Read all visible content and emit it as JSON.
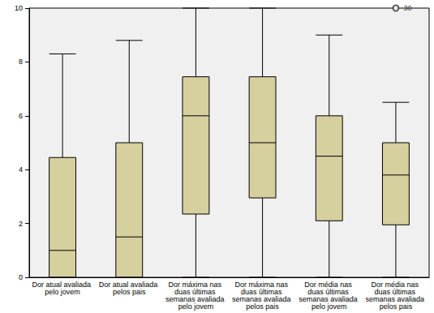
{
  "chart_data": {
    "type": "boxplot",
    "categories": [
      "Dor atual avaliada pelo jovem",
      "Dor atual avaliada pelos pais",
      "Dor máxima nas duas últimas semanas avaliada pelo jovem",
      "Dor máxima nas duas últimas semanas avaliada pelos pais",
      "Dor média nas duas últimas semanas avaliada pelo jovem",
      "Dor média nas duas últimas semanas avaliada pelos pais"
    ],
    "values": [
      [
        0,
        0,
        1,
        4.45,
        8.3
      ],
      [
        0,
        0,
        1.5,
        5,
        8.8
      ],
      [
        0,
        2.35,
        6,
        7.45,
        10
      ],
      [
        0,
        2.95,
        5,
        7.45,
        10
      ],
      [
        0,
        2.1,
        4.5,
        6,
        9
      ],
      [
        0,
        1.95,
        3.8,
        5,
        6.5
      ]
    ],
    "outliers": [
      {
        "category": "Dor média nas duas últimas semanas avaliada pelos pais",
        "value": 10,
        "label": "30"
      }
    ],
    "color": "#d6cf9e",
    "ylim": [
      0,
      10
    ],
    "yticks": [
      0,
      2,
      4,
      6,
      8,
      10
    ],
    "grid": false
  }
}
